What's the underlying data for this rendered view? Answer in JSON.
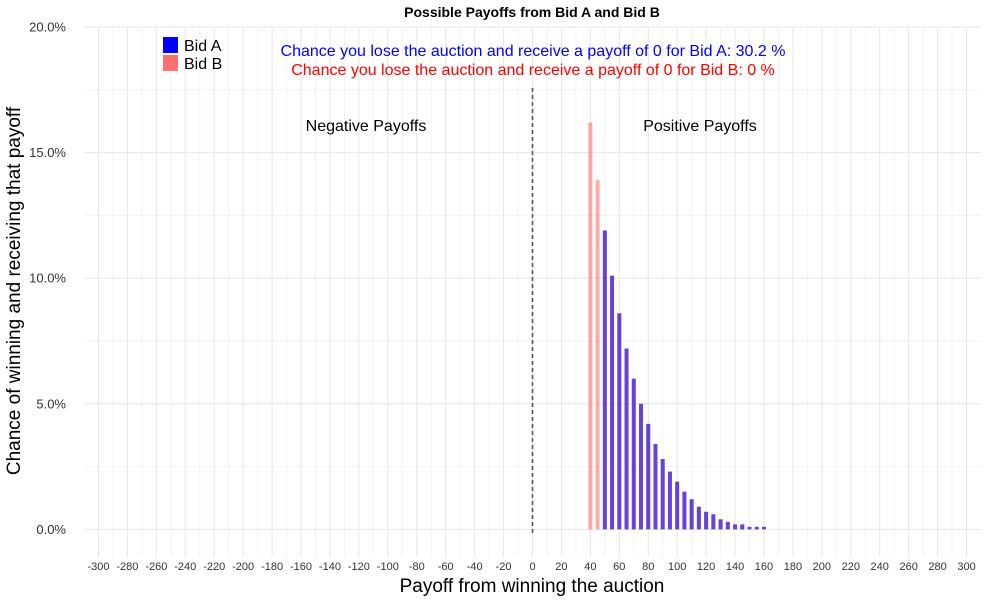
{
  "chart_data": {
    "type": "bar",
    "title": "Possible Payoffs from Bid A and Bid B",
    "xlabel": "Payoff from winning the auction",
    "ylabel": "Chance of winning and receiving that payoff",
    "xlim": [
      -310,
      310
    ],
    "ylim": [
      -0.011,
      0.2
    ],
    "x_ticks": [
      -300,
      -280,
      -260,
      -240,
      -220,
      -200,
      -180,
      -160,
      -140,
      -120,
      -100,
      -80,
      -60,
      -40,
      -20,
      0,
      20,
      40,
      60,
      80,
      100,
      120,
      140,
      160,
      180,
      200,
      220,
      240,
      260,
      280,
      300
    ],
    "y_ticks": [
      {
        "value": 0,
        "label": "0.0%"
      },
      {
        "value": 0.05,
        "label": "5.0%"
      },
      {
        "value": 0.1,
        "label": "10.0%"
      },
      {
        "value": 0.15,
        "label": "15.0%"
      },
      {
        "value": 0.2,
        "label": "20.0%"
      }
    ],
    "grid": true,
    "legend_position": "top-left",
    "reference_line_x": 0,
    "region_labels": {
      "negative": "Negative Payoffs",
      "positive": "Positive Payoffs"
    },
    "loss_notes": [
      {
        "text": "Chance you lose the auction and receive a payoff of 0 for Bid A:  30.2 %",
        "color": "#0000FF"
      },
      {
        "text": "Chance you lose the auction and receive a payoff of 0 for Bid B:  0 %",
        "color": "#FF0000"
      }
    ],
    "series": [
      {
        "name": "Bid A",
        "color": "#0000FF",
        "x": [
          50,
          55,
          60,
          65,
          70,
          75,
          80,
          85,
          90,
          95,
          100,
          105,
          110,
          115,
          120,
          125,
          130,
          135,
          140,
          145,
          150,
          155,
          160
        ],
        "values": [
          0.119,
          0.101,
          0.086,
          0.072,
          0.06,
          0.05,
          0.042,
          0.034,
          0.028,
          0.023,
          0.019,
          0.015,
          0.012,
          0.009,
          0.007,
          0.006,
          0.004,
          0.003,
          0.002,
          0.002,
          0.001,
          0.001,
          0.001
        ]
      },
      {
        "name": "Bid B",
        "color": "#FF7070",
        "x": [
          40,
          45,
          50,
          55,
          60,
          65,
          70,
          75,
          80,
          85,
          90,
          95,
          100,
          105,
          110,
          115,
          120,
          125,
          130,
          135,
          140,
          145,
          150,
          155,
          160
        ],
        "values": [
          0.162,
          0.139,
          0.119,
          0.101,
          0.086,
          0.072,
          0.06,
          0.05,
          0.042,
          0.034,
          0.028,
          0.023,
          0.019,
          0.015,
          0.012,
          0.009,
          0.007,
          0.006,
          0.004,
          0.003,
          0.002,
          0.002,
          0.001,
          0.001,
          0.001
        ]
      }
    ]
  }
}
